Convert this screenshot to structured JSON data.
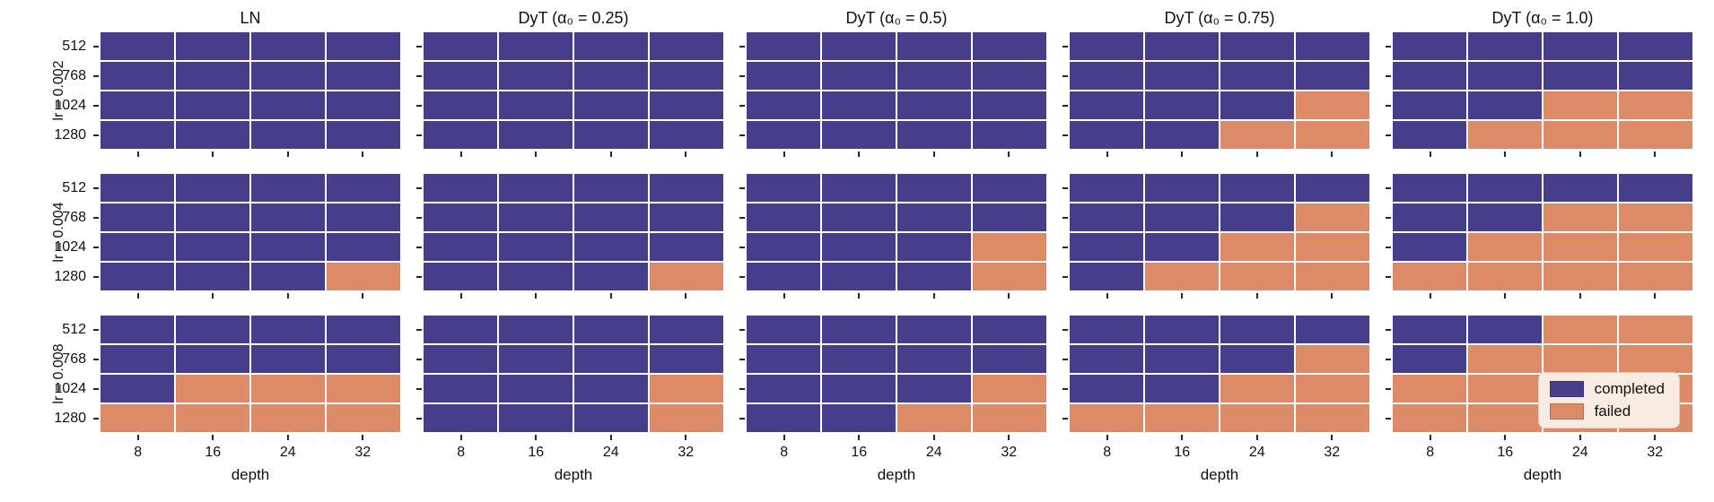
{
  "chart_data": {
    "type": "heatmap",
    "layout": "3 rows x 5 columns of subplots, shared axes",
    "xlabel": "depth",
    "x_tick_labels": [
      "8",
      "16",
      "24",
      "32"
    ],
    "y_tick_labels": [
      "512",
      "768",
      "1024",
      "1280"
    ],
    "cell_states_legend": "each subplot grid is rows 512/768/1024/1280 (top to bottom) by depth 8/16/24/32 (left to right); C = completed, F = failed",
    "colors": {
      "completed": "#473d8b",
      "failed": "#dd8a66",
      "grid_gap": "#ffffff",
      "tick": "#262626"
    },
    "legend": {
      "position": "inside bottom-right subplot",
      "background": "#f8ece2",
      "items": [
        {
          "label": "completed",
          "color": "#473d8b"
        },
        {
          "label": "failed",
          "color": "#dd8a66"
        }
      ]
    },
    "rows": [
      {
        "label": "lr = 0.002",
        "subplots": [
          {
            "title": "LN",
            "grid": [
              "CCCC",
              "CCCC",
              "CCCC",
              "CCCC"
            ]
          },
          {
            "title": "DyT (α₀ = 0.25)",
            "grid": [
              "CCCC",
              "CCCC",
              "CCCC",
              "CCCC"
            ]
          },
          {
            "title": "DyT (α₀ = 0.5)",
            "grid": [
              "CCCC",
              "CCCC",
              "CCCC",
              "CCCC"
            ]
          },
          {
            "title": "DyT (α₀ = 0.75)",
            "grid": [
              "CCCC",
              "CCCC",
              "CCCF",
              "CCFF"
            ]
          },
          {
            "title": "DyT (α₀ = 1.0)",
            "grid": [
              "CCCC",
              "CCCC",
              "CCFF",
              "CFFF"
            ]
          }
        ]
      },
      {
        "label": "lr = 0.004",
        "subplots": [
          {
            "title": "",
            "grid": [
              "CCCC",
              "CCCC",
              "CCCC",
              "CCCF"
            ]
          },
          {
            "title": "",
            "grid": [
              "CCCC",
              "CCCC",
              "CCCC",
              "CCCF"
            ]
          },
          {
            "title": "",
            "grid": [
              "CCCC",
              "CCCC",
              "CCCF",
              "CCCF"
            ]
          },
          {
            "title": "",
            "grid": [
              "CCCC",
              "CCCF",
              "CCFF",
              "CFFF"
            ]
          },
          {
            "title": "",
            "grid": [
              "CCCC",
              "CCFF",
              "CFFF",
              "FFFF"
            ]
          }
        ]
      },
      {
        "label": "lr = 0.008",
        "subplots": [
          {
            "title": "",
            "grid": [
              "CCCC",
              "CCCC",
              "CFFF",
              "FFFF"
            ]
          },
          {
            "title": "",
            "grid": [
              "CCCC",
              "CCCC",
              "CCCF",
              "CCCF"
            ]
          },
          {
            "title": "",
            "grid": [
              "CCCC",
              "CCCC",
              "CCCF",
              "CCFF"
            ]
          },
          {
            "title": "",
            "grid": [
              "CCCC",
              "CCCF",
              "CCFF",
              "FFFF"
            ]
          },
          {
            "title": "",
            "grid": [
              "CCFF",
              "CFFF",
              "FFFF",
              "FFFF"
            ]
          }
        ]
      }
    ]
  }
}
